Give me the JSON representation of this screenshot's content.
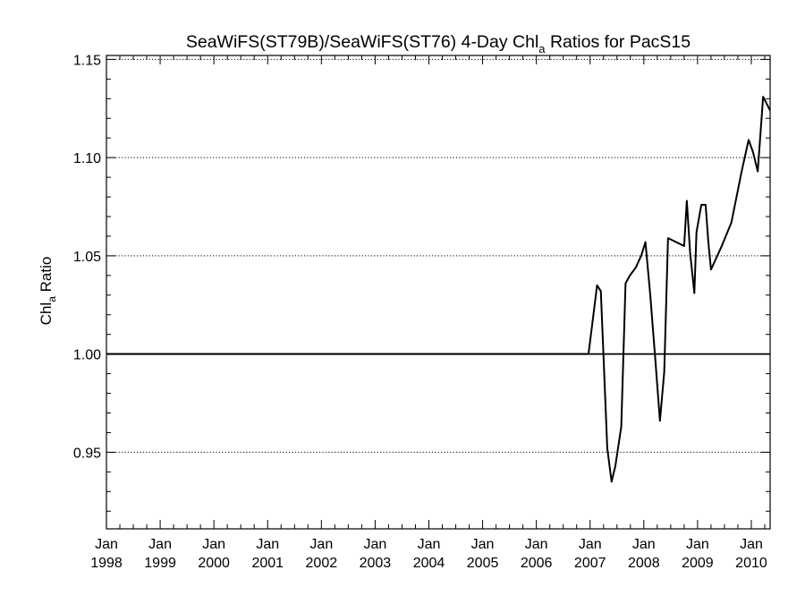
{
  "chart_data": {
    "type": "line",
    "title": {
      "prefix": "SeaWiFS(ST79B)/SeaWiFS(ST76) 4-Day Chl",
      "subscript": "a",
      "suffix": " Ratios for PacS15"
    },
    "ylabel": {
      "prefix": "Chl",
      "subscript": "a",
      "suffix": " Ratio"
    },
    "xlabel": "",
    "xlim": [
      1998.0,
      2010.35
    ],
    "ylim": [
      0.911,
      1.152
    ],
    "yticks": [
      {
        "value": 0.95,
        "label": "0.95"
      },
      {
        "value": 1.0,
        "label": "1.00"
      },
      {
        "value": 1.05,
        "label": "1.05"
      },
      {
        "value": 1.1,
        "label": "1.10"
      },
      {
        "value": 1.15,
        "label": "1.15"
      }
    ],
    "xticks": [
      {
        "value": 1998,
        "month": "Jan",
        "year": "1998"
      },
      {
        "value": 1999,
        "month": "Jan",
        "year": "1999"
      },
      {
        "value": 2000,
        "month": "Jan",
        "year": "2000"
      },
      {
        "value": 2001,
        "month": "Jan",
        "year": "2001"
      },
      {
        "value": 2002,
        "month": "Jan",
        "year": "2002"
      },
      {
        "value": 2003,
        "month": "Jan",
        "year": "2003"
      },
      {
        "value": 2004,
        "month": "Jan",
        "year": "2004"
      },
      {
        "value": 2005,
        "month": "Jan",
        "year": "2005"
      },
      {
        "value": 2006,
        "month": "Jan",
        "year": "2006"
      },
      {
        "value": 2007,
        "month": "Jan",
        "year": "2007"
      },
      {
        "value": 2008,
        "month": "Jan",
        "year": "2008"
      },
      {
        "value": 2009,
        "month": "Jan",
        "year": "2009"
      },
      {
        "value": 2010,
        "month": "Jan",
        "year": "2010"
      }
    ],
    "grid": "horizontal dotted at major y ticks",
    "reference_line": 1.0,
    "series": [
      {
        "color": "#000000",
        "points": [
          [
            1998.0,
            1.0
          ],
          [
            2006.97,
            1.0
          ],
          [
            2007.03,
            1.013
          ],
          [
            2007.13,
            1.035
          ],
          [
            2007.2,
            1.032
          ],
          [
            2007.32,
            0.952
          ],
          [
            2007.4,
            0.935
          ],
          [
            2007.47,
            0.943
          ],
          [
            2007.58,
            0.963
          ],
          [
            2007.66,
            1.036
          ],
          [
            2007.74,
            1.04
          ],
          [
            2007.85,
            1.044
          ],
          [
            2007.95,
            1.05
          ],
          [
            2008.03,
            1.057
          ],
          [
            2008.12,
            1.03
          ],
          [
            2008.22,
            0.995
          ],
          [
            2008.3,
            0.966
          ],
          [
            2008.38,
            0.991
          ],
          [
            2008.45,
            1.059
          ],
          [
            2008.6,
            1.057
          ],
          [
            2008.75,
            1.055
          ],
          [
            2008.8,
            1.078
          ],
          [
            2008.86,
            1.052
          ],
          [
            2008.94,
            1.031
          ],
          [
            2008.98,
            1.062
          ],
          [
            2009.07,
            1.076
          ],
          [
            2009.15,
            1.076
          ],
          [
            2009.2,
            1.057
          ],
          [
            2009.25,
            1.043
          ],
          [
            2009.45,
            1.055
          ],
          [
            2009.63,
            1.067
          ],
          [
            2009.82,
            1.093
          ],
          [
            2009.95,
            1.109
          ],
          [
            2010.03,
            1.103
          ],
          [
            2010.12,
            1.093
          ],
          [
            2010.22,
            1.131
          ],
          [
            2010.35,
            1.124
          ]
        ]
      }
    ]
  }
}
